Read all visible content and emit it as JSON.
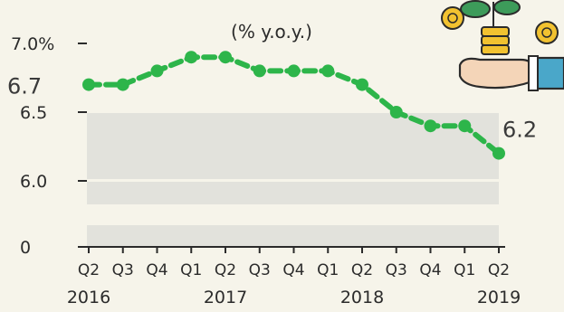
{
  "chart_data": {
    "type": "line",
    "subtitle": "(% y.o.y.)",
    "categories": [
      "Q2",
      "Q3",
      "Q4",
      "Q1",
      "Q2",
      "Q3",
      "Q4",
      "Q1",
      "Q2",
      "Q3",
      "Q4",
      "Q1",
      "Q2"
    ],
    "years": [
      {
        "label": "2016",
        "index": 0
      },
      {
        "label": "2017",
        "index": 4
      },
      {
        "label": "2018",
        "index": 8
      },
      {
        "label": "2019",
        "index": 12
      }
    ],
    "values": [
      6.7,
      6.7,
      6.8,
      6.9,
      6.9,
      6.8,
      6.8,
      6.8,
      6.7,
      6.5,
      6.4,
      6.4,
      6.2
    ],
    "y_ticks": [
      {
        "value": 0,
        "label": "0"
      },
      {
        "value": 6.0,
        "label": "6.0"
      },
      {
        "value": 6.5,
        "label": "6.5"
      },
      {
        "value": 7.0,
        "label": "7.0%"
      }
    ],
    "y_axis_break": true,
    "data_labels": [
      {
        "index": 0,
        "text": "6.7"
      },
      {
        "index": 12,
        "text": "6.2"
      }
    ],
    "line_color": "#2db54a",
    "band_color": "#e2e2dc",
    "grid": true
  },
  "illustration": {
    "name": "hand-holding-coin-plant",
    "colors": {
      "coin": "#f2c230",
      "leaf": "#3d9b5a",
      "sleeve": "#4aa7c9",
      "hand": "#f4d5b8"
    }
  }
}
